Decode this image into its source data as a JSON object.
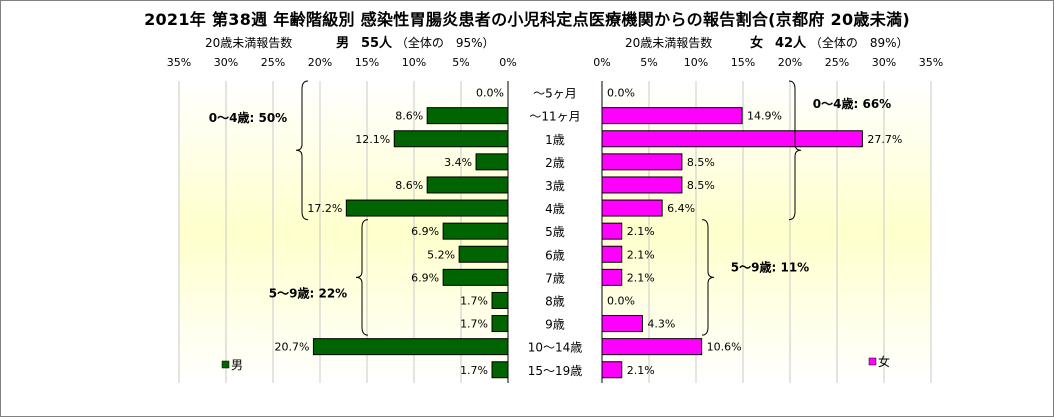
{
  "title": "2021年 第38週 年齢階級別 感染性胃腸炎患者の小児科定点医療機関からの報告割合(京都府 20歳未満)",
  "left_header": {
    "caption": "20歳未満報告数",
    "sex": "男",
    "count": "55人",
    "share": "（全体の　95%）"
  },
  "right_header": {
    "caption": "20歳未満報告数",
    "sex": "女",
    "count": "42人",
    "share": "（全体の　89%）"
  },
  "colors": {
    "male": "#006400",
    "female": "#ff00ff",
    "plot_top": "#ffffff",
    "plot_mid": "#ffffcc"
  },
  "chart_data": [
    {
      "type": "bar",
      "orientation": "horizontal",
      "direction": "right-to-left",
      "categories": [
        "～5ヶ月",
        "～11ヶ月",
        "1歳",
        "2歳",
        "3歳",
        "4歳",
        "5歳",
        "6歳",
        "7歳",
        "8歳",
        "9歳",
        "10～14歳",
        "15～19歳"
      ],
      "series": [
        {
          "name": "男",
          "values": [
            0.0,
            8.6,
            12.1,
            3.4,
            8.6,
            17.2,
            6.9,
            5.2,
            6.9,
            1.7,
            1.7,
            20.7,
            1.7
          ]
        }
      ],
      "data_labels": [
        "0.0%",
        "8.6%",
        "12.1%",
        "3.4%",
        "8.6%",
        "17.2%",
        "6.9%",
        "5.2%",
        "6.9%",
        "1.7%",
        "1.7%",
        "20.7%",
        "1.7%"
      ],
      "xlim": [
        0,
        35
      ],
      "x_ticks": [
        "35%",
        "30%",
        "25%",
        "20%",
        "15%",
        "10%",
        "5%",
        "0%"
      ],
      "grid": true,
      "legend": "bottom-left",
      "annotations": [
        {
          "text": "0～4歳: 50%",
          "from": "～5ヶ月",
          "to": "4歳"
        },
        {
          "text": "5～9歳: 22%",
          "from": "5歳",
          "to": "9歳"
        }
      ]
    },
    {
      "type": "bar",
      "orientation": "horizontal",
      "direction": "left-to-right",
      "categories": [
        "～5ヶ月",
        "～11ヶ月",
        "1歳",
        "2歳",
        "3歳",
        "4歳",
        "5歳",
        "6歳",
        "7歳",
        "8歳",
        "9歳",
        "10～14歳",
        "15～19歳"
      ],
      "series": [
        {
          "name": "女",
          "values": [
            0.0,
            14.9,
            27.7,
            8.5,
            8.5,
            6.4,
            2.1,
            2.1,
            2.1,
            0.0,
            4.3,
            10.6,
            2.1
          ]
        }
      ],
      "data_labels": [
        "0.0%",
        "14.9%",
        "27.7%",
        "8.5%",
        "8.5%",
        "6.4%",
        "2.1%",
        "2.1%",
        "2.1%",
        "0.0%",
        "4.3%",
        "10.6%",
        "2.1%"
      ],
      "xlim": [
        0,
        35
      ],
      "x_ticks": [
        "0%",
        "5%",
        "10%",
        "15%",
        "20%",
        "25%",
        "30%",
        "35%"
      ],
      "grid": true,
      "legend": "bottom-right",
      "annotations": [
        {
          "text": "0～4歳: 66%",
          "from": "～5ヶ月",
          "to": "4歳"
        },
        {
          "text": "5～9歳: 11%",
          "from": "5歳",
          "to": "9歳"
        }
      ]
    }
  ]
}
